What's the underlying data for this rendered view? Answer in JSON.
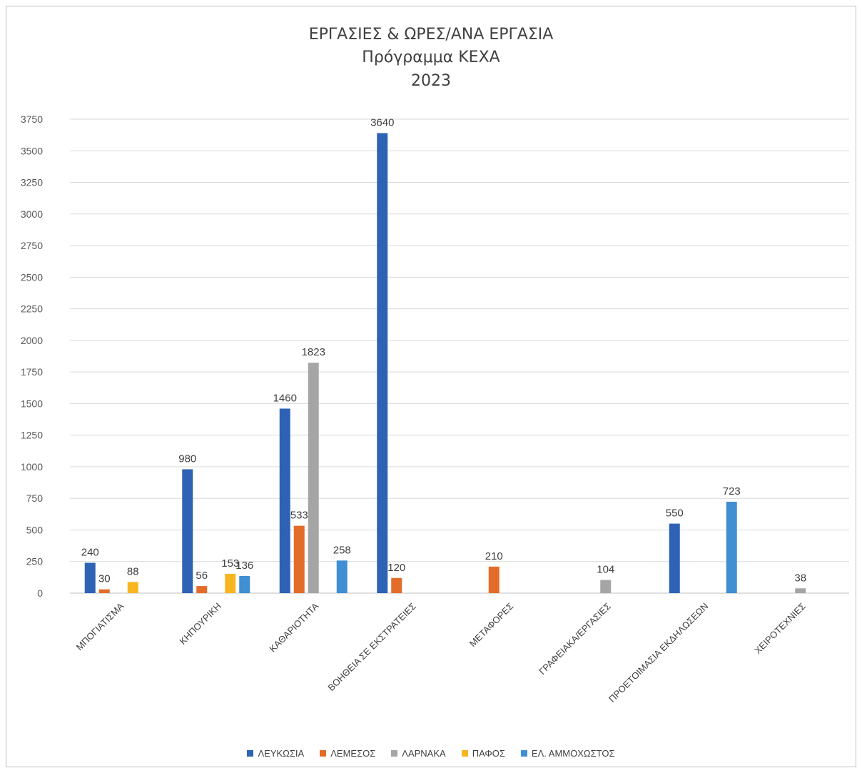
{
  "chart_data": {
    "type": "bar",
    "title_lines": [
      "ΕΡΓΑΣΙΕΣ & ΩΡΕΣ/ΑΝΑ ΕΡΓΑΣΙΑ",
      "Πρόγραμμα ΚΕΧΑ",
      "2023"
    ],
    "categories": [
      "ΜΠΟΓΙΑΤΙΣΜΑ",
      "ΚΗΠΟΥΡΙΚΗ",
      "ΚΑΘΑΡΙΟΤΗΤΑ",
      "ΒΟΗΘΕΙΑ ΣΕ ΕΚΣΤΡΑΤΕΙΕΣ",
      "ΜΕΤΑΦΟΡΕΣ",
      "ΓΡΑΦΕΙΑΚΑ/ΕΡΓΑΣΙΕΣ",
      "ΠΡΟΕΤΟΙΜΑΣΙΑ ΕΚΔΗΛΩΣΕΩΝ",
      "ΧΕΙΡΟΤΕΧΝΙΕΣ"
    ],
    "series": [
      {
        "name": "ΛΕΥΚΩΣΙΑ",
        "color": "#2e62b5",
        "values": [
          240,
          980,
          1460,
          3640,
          null,
          null,
          550,
          null
        ]
      },
      {
        "name": "ΛΕΜΕΣΟΣ",
        "color": "#e46c2b",
        "values": [
          30,
          56,
          533,
          120,
          210,
          null,
          null,
          null
        ]
      },
      {
        "name": "ΛΑΡΝΑΚΑ",
        "color": "#a5a5a5",
        "values": [
          null,
          null,
          1823,
          null,
          null,
          104,
          null,
          38
        ]
      },
      {
        "name": "ΠΑΦΟΣ",
        "color": "#f7b620",
        "values": [
          88,
          153,
          null,
          null,
          null,
          null,
          null,
          null
        ]
      },
      {
        "name": "ΕΛ. ΑΜΜΟΧΩΣΤΟΣ",
        "color": "#3f8fd2",
        "values": [
          null,
          136,
          258,
          null,
          null,
          null,
          723,
          null
        ]
      }
    ],
    "yticks": [
      0,
      250,
      500,
      750,
      1000,
      1250,
      1500,
      1750,
      2000,
      2250,
      2500,
      2750,
      3000,
      3250,
      3500,
      3750
    ],
    "ylim": [
      0,
      3750
    ],
    "grid": true,
    "legend_position": "bottom"
  }
}
